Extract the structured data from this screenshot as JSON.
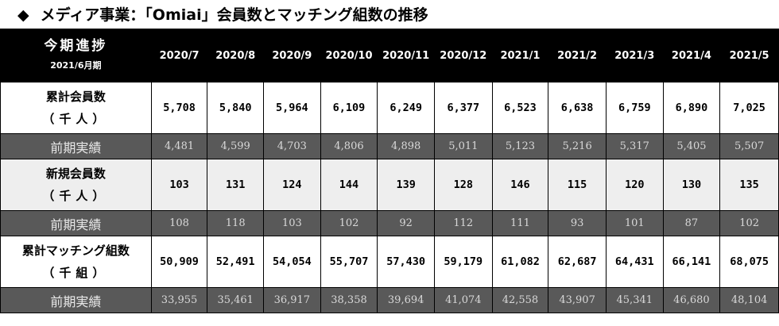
{
  "title": {
    "mark": "◆",
    "text": "メディア事業：「Omiai」会員数とマッチング組数の推移"
  },
  "header": {
    "label_line1": "今期進捗",
    "label_line2": "2021/6月期",
    "months": [
      "2020/7",
      "2020/8",
      "2020/9",
      "2020/10",
      "2020/11",
      "2020/12",
      "2021/1",
      "2021/2",
      "2021/3",
      "2021/4",
      "2021/5"
    ]
  },
  "sections": [
    {
      "name_line1": "累計会員数",
      "name_line2": "（千人）",
      "values": [
        "5,708",
        "5,840",
        "5,964",
        "6,109",
        "6,249",
        "6,377",
        "6,523",
        "6,638",
        "6,759",
        "6,890",
        "7,025"
      ],
      "prev_label": "前期実績",
      "prev_values": [
        "4,481",
        "4,599",
        "4,703",
        "4,806",
        "4,898",
        "5,011",
        "5,123",
        "5,216",
        "5,317",
        "5,405",
        "5,507"
      ]
    },
    {
      "name_line1": "新規会員数",
      "name_line2": "（千人）",
      "values": [
        "103",
        "131",
        "124",
        "144",
        "139",
        "128",
        "146",
        "115",
        "120",
        "130",
        "135"
      ],
      "prev_label": "前期実績",
      "prev_values": [
        "108",
        "118",
        "103",
        "102",
        "92",
        "112",
        "111",
        "93",
        "101",
        "87",
        "102"
      ]
    },
    {
      "name_line1": "累計マッチング組数",
      "name_line2": "（千組）",
      "values": [
        "50,909",
        "52,491",
        "54,054",
        "55,707",
        "57,430",
        "59,179",
        "61,082",
        "62,687",
        "64,431",
        "66,141",
        "68,075"
      ],
      "prev_label": "前期実績",
      "prev_values": [
        "33,955",
        "35,461",
        "36,917",
        "38,358",
        "39,694",
        "41,074",
        "42,558",
        "43,907",
        "45,341",
        "46,680",
        "48,104"
      ]
    }
  ]
}
